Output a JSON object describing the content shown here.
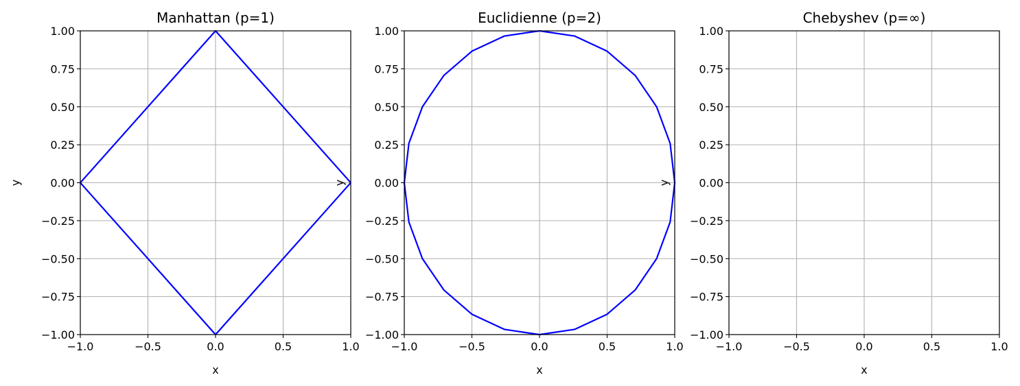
{
  "chart_data": [
    {
      "type": "line",
      "title": "Manhattan (p=1)",
      "xlabel": "x",
      "ylabel": "y",
      "xlim": [
        -1.0,
        1.0
      ],
      "ylim": [
        -1.0,
        1.0
      ],
      "xticks": [
        "−1.0",
        "−0.5",
        "0.0",
        "0.5",
        "1.0"
      ],
      "yticks": [
        "1.00",
        "0.75",
        "0.50",
        "0.25",
        "0.00",
        "−0.25",
        "−0.50",
        "−0.75",
        "−1.00"
      ],
      "grid": true,
      "series": [
        {
          "color": "#0000ff",
          "x": [
            1,
            0,
            -1,
            0,
            1
          ],
          "y": [
            0,
            1,
            0,
            -1,
            0
          ]
        }
      ]
    },
    {
      "type": "line",
      "title": "Euclidienne (p=2)",
      "xlabel": "x",
      "ylabel": "y",
      "xlim": [
        -1.0,
        1.0
      ],
      "ylim": [
        -1.0,
        1.0
      ],
      "xticks": [
        "−1.0",
        "−0.5",
        "0.0",
        "0.5",
        "1.0"
      ],
      "yticks": [
        "1.00",
        "0.75",
        "0.50",
        "0.25",
        "0.00",
        "−0.25",
        "−0.50",
        "−0.75",
        "−1.00"
      ],
      "grid": true,
      "series": [
        {
          "color": "#0000ff",
          "x": [
            1,
            0.966,
            0.866,
            0.707,
            0.5,
            0.259,
            0,
            -0.259,
            -0.5,
            -0.707,
            -0.866,
            -0.966,
            -1,
            -0.966,
            -0.866,
            -0.707,
            -0.5,
            -0.259,
            0,
            0.259,
            0.5,
            0.707,
            0.866,
            0.966,
            1
          ],
          "y": [
            0,
            0.259,
            0.5,
            0.707,
            0.866,
            0.966,
            1,
            0.966,
            0.866,
            0.707,
            0.5,
            0.259,
            0,
            -0.259,
            -0.5,
            -0.707,
            -0.866,
            -0.966,
            -1,
            -0.966,
            -0.866,
            -0.707,
            -0.5,
            -0.259,
            0
          ]
        }
      ]
    },
    {
      "type": "line",
      "title": "Chebyshev (p=∞)",
      "xlabel": "x",
      "ylabel": "y",
      "xlim": [
        -1.0,
        1.0
      ],
      "ylim": [
        -1.0,
        1.0
      ],
      "xticks": [
        "−1.0",
        "−0.5",
        "0.0",
        "0.5",
        "1.0"
      ],
      "yticks": [
        "1.00",
        "0.75",
        "0.50",
        "0.25",
        "0.00",
        "−0.25",
        "−0.50",
        "−0.75",
        "−1.00"
      ],
      "grid": true,
      "series": []
    }
  ]
}
